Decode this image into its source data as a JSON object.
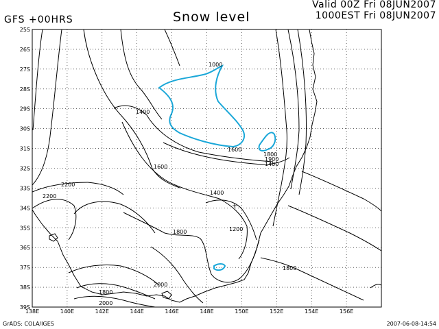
{
  "header": {
    "model_label": "GFS +00HRS",
    "title": "Snow level",
    "valid_line1": "Valid 00Z Fri 08JUN2007",
    "valid_line2": "1000EST Fri 08JUN2007"
  },
  "footer": {
    "credit": "GrADS: COLA/IGES",
    "timestamp": "2007-06-08-14:54"
  },
  "map": {
    "lat_ticks": [
      "25S",
      "26S",
      "27S",
      "28S",
      "29S",
      "30S",
      "31S",
      "32S",
      "33S",
      "34S",
      "35S",
      "36S",
      "37S",
      "38S",
      "39S"
    ],
    "lon_ticks": [
      "138E",
      "140E",
      "142E",
      "144E",
      "146E",
      "148E",
      "150E",
      "152E",
      "154E",
      "156E"
    ],
    "contour_labels": [
      "1000",
      "1400",
      "1600",
      "1600",
      "1800",
      "1900",
      "1400",
      "2200",
      "2200",
      "1400",
      "1800",
      "1200",
      "1800",
      "2000",
      "1800",
      "2000"
    ],
    "colors": {
      "snow_contour": "#1aa7d8",
      "contour": "#000000",
      "grid": "#000000"
    }
  }
}
